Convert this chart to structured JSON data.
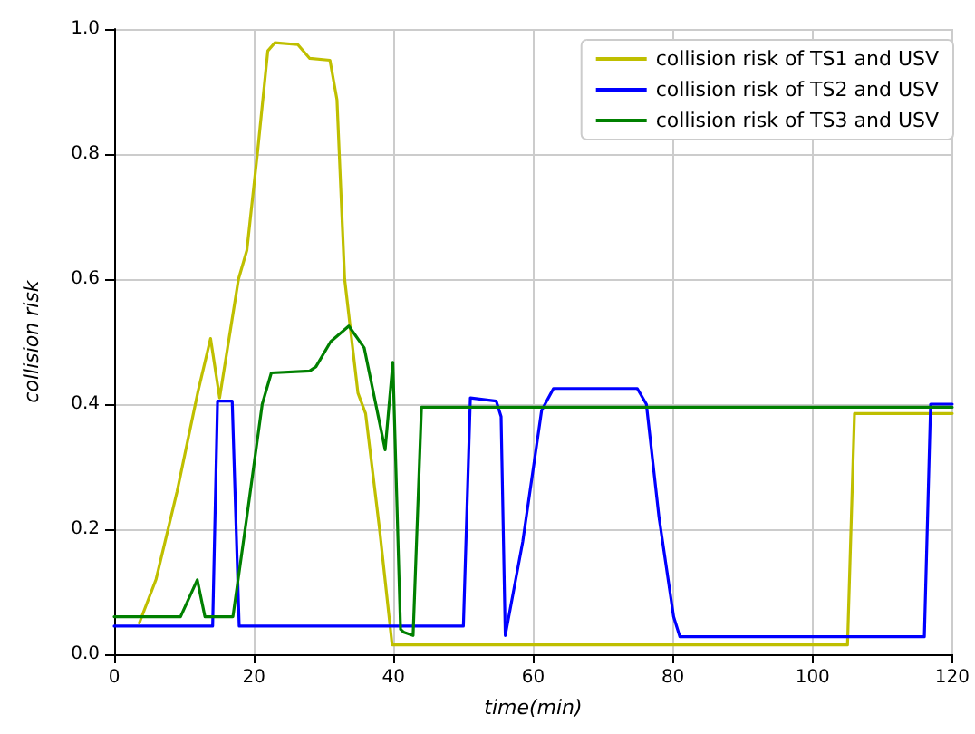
{
  "chart_data": {
    "type": "line",
    "xlabel": "time(min)",
    "ylabel": "collision risk",
    "xlim": [
      0,
      120
    ],
    "xticks": [
      0,
      20,
      40,
      60,
      80,
      100,
      120
    ],
    "ylim": [
      0,
      1
    ],
    "yticks": [
      {
        "value": 0,
        "label": "0.0"
      },
      {
        "value": 0.2,
        "label": "0.2"
      },
      {
        "value": 0.4,
        "label": "0.4"
      },
      {
        "value": 0.6,
        "label": "0.6"
      },
      {
        "value": 0.8,
        "label": "0.8"
      },
      {
        "value": 1,
        "label": "1.0"
      }
    ],
    "grid": true,
    "legend": "top right",
    "marker": "none",
    "line_style": "solid",
    "series": [
      {
        "name": "collision risk of TS1 and USV",
        "color": "#bfbf00",
        "x": [
          3.6,
          6,
          9,
          12,
          13.8,
          15.1,
          17.8,
          19,
          20.5,
          22,
          23,
          26.3,
          28,
          30.9,
          31.9,
          33,
          34.9,
          36,
          38,
          39.8,
          105,
          106,
          120
        ],
        "values": [
          0.05,
          0.12,
          0.26,
          0.42,
          0.505,
          0.41,
          0.6,
          0.646,
          0.8,
          0.965,
          0.978,
          0.975,
          0.953,
          0.95,
          0.887,
          0.6,
          0.418,
          0.385,
          0.2,
          0.015,
          0.015,
          0.385,
          0.385
        ]
      },
      {
        "name": "collision risk of TS2 and USV",
        "color": "#0000ff",
        "x": [
          0,
          14.1,
          14.8,
          16.9,
          17.9,
          50,
          51,
          54.7,
          55.4,
          56,
          58.5,
          61.2,
          62.9,
          74.9,
          76.2,
          78,
          80.1,
          81,
          116,
          116.9,
          120
        ],
        "values": [
          0.045,
          0.045,
          0.405,
          0.405,
          0.045,
          0.045,
          0.41,
          0.405,
          0.38,
          0.03,
          0.18,
          0.39,
          0.425,
          0.425,
          0.4,
          0.22,
          0.06,
          0.028,
          0.028,
          0.4,
          0.4
        ]
      },
      {
        "name": "collision risk of TS3 and USV",
        "color": "#008000",
        "x": [
          0,
          9.5,
          11.9,
          13,
          17,
          19,
          21.2,
          22.5,
          28,
          28.9,
          31,
          33.6,
          35.8,
          38.8,
          39.9,
          41,
          41.5,
          42.8,
          44,
          120
        ],
        "values": [
          0.06,
          0.06,
          0.119,
          0.06,
          0.06,
          0.22,
          0.4,
          0.45,
          0.453,
          0.46,
          0.5,
          0.525,
          0.49,
          0.327,
          0.467,
          0.04,
          0.035,
          0.03,
          0.395,
          0.395
        ]
      }
    ]
  }
}
